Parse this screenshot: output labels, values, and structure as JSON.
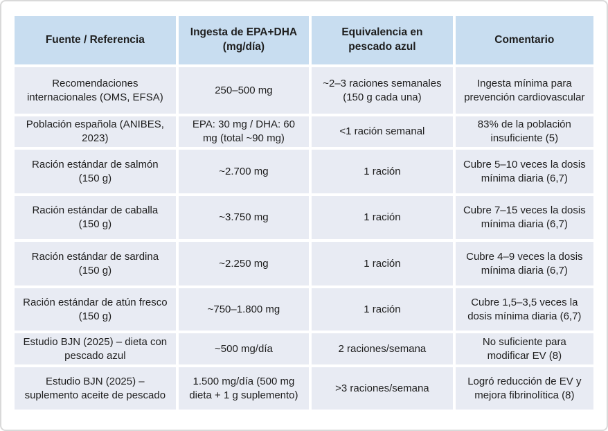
{
  "colors": {
    "header_bg": "#c8ddf0",
    "cell_bg": "#e8ebf3",
    "text": "#1e1e1e",
    "page_border": "#d9d9d9",
    "page_bg": "#ffffff"
  },
  "table": {
    "columns": [
      "Fuente / Referencia",
      "Ingesta de EPA+DHA (mg/día)",
      "Equivalencia en pescado azul",
      "Comentario"
    ],
    "rows": [
      [
        "Recomendaciones internacionales (OMS, EFSA)",
        "250–500 mg",
        "~2–3 raciones semanales (150 g cada una)",
        "Ingesta mínima para prevención cardiovascular"
      ],
      [
        "Población española (ANIBES, 2023)",
        "EPA: 30 mg / DHA: 60 mg (total ~90 mg)",
        "<1 ración semanal",
        "83% de la población insuficiente (5)"
      ],
      [
        "Ración estándar de salmón (150 g)",
        "~2.700 mg",
        "1 ración",
        "Cubre 5–10 veces la dosis mínima diaria (6,7)"
      ],
      [
        "Ración estándar de caballa (150 g)",
        "~3.750 mg",
        "1 ración",
        "Cubre 7–15 veces la dosis mínima diaria (6,7)"
      ],
      [
        "Ración estándar de sardina (150 g)",
        "~2.250 mg",
        "1 ración",
        "Cubre 4–9 veces la dosis mínima diaria (6,7)"
      ],
      [
        "Ración estándar de atún fresco (150 g)",
        "~750–1.800 mg",
        "1 ración",
        "Cubre 1,5–3,5 veces la dosis mínima diaria (6,7)"
      ],
      [
        "Estudio BJN (2025) – dieta con pescado azul",
        "~500 mg/día",
        "2 raciones/semana",
        "No suficiente para modificar EV (8)"
      ],
      [
        "Estudio BJN (2025) – suplemento aceite de pescado",
        "1.500 mg/día (500 mg dieta + 1 g suplemento)",
        ">3 raciones/semana",
        "Logró reducción de EV y mejora fibrinolítica (8)"
      ]
    ]
  }
}
